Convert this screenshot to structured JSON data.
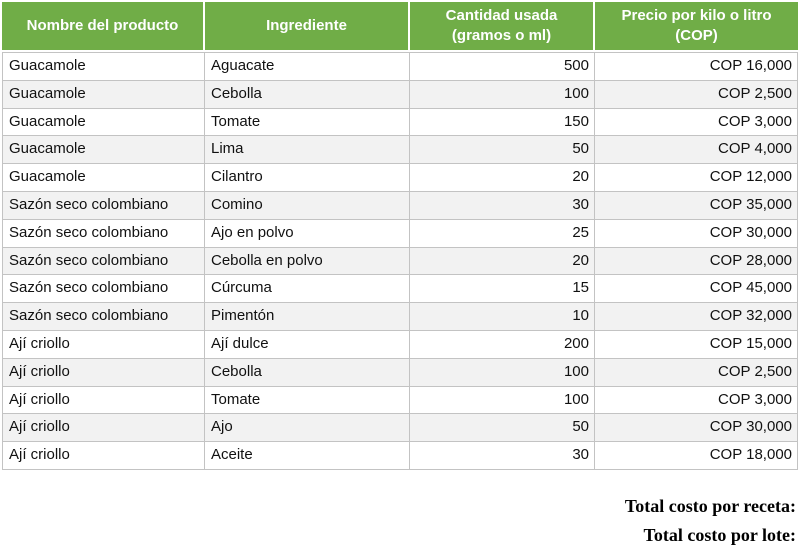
{
  "table": {
    "columns": [
      {
        "label": "Nombre del producto"
      },
      {
        "label": "Ingrediente"
      },
      {
        "label": "Cantidad usada (gramos o ml)"
      },
      {
        "label": "Precio por kilo o litro (COP)"
      }
    ],
    "rows": [
      [
        "Guacamole",
        "Aguacate",
        "500",
        "COP 16,000"
      ],
      [
        "Guacamole",
        "Cebolla",
        "100",
        "COP 2,500"
      ],
      [
        "Guacamole",
        "Tomate",
        "150",
        "COP 3,000"
      ],
      [
        "Guacamole",
        "Lima",
        "50",
        "COP 4,000"
      ],
      [
        "Guacamole",
        "Cilantro",
        "20",
        "COP 12,000"
      ],
      [
        "Sazón seco colombiano",
        "Comino",
        "30",
        "COP 35,000"
      ],
      [
        "Sazón seco colombiano",
        "Ajo en polvo",
        "25",
        "COP 30,000"
      ],
      [
        "Sazón seco colombiano",
        "Cebolla en polvo",
        "20",
        "COP 28,000"
      ],
      [
        "Sazón seco colombiano",
        "Cúrcuma",
        "15",
        "COP 45,000"
      ],
      [
        "Sazón seco colombiano",
        "Pimentón",
        "10",
        "COP 32,000"
      ],
      [
        "Ají criollo",
        "Ají dulce",
        "200",
        "COP 15,000"
      ],
      [
        "Ají criollo",
        "Cebolla",
        "100",
        "COP 2,500"
      ],
      [
        "Ají criollo",
        "Tomate",
        "100",
        "COP 3,000"
      ],
      [
        "Ají criollo",
        "Ajo",
        "50",
        "COP 30,000"
      ],
      [
        "Ají criollo",
        "Aceite",
        "30",
        "COP 18,000"
      ]
    ]
  },
  "totals": {
    "receta_label": "Total costo por receta:",
    "lote_label": "Total costo por lote:"
  },
  "colors": {
    "header_green": "#70AD47",
    "header_text": "#FFFFFF",
    "row_alt_gray": "#F2F2F2",
    "border_gray": "#C3C3C3"
  }
}
